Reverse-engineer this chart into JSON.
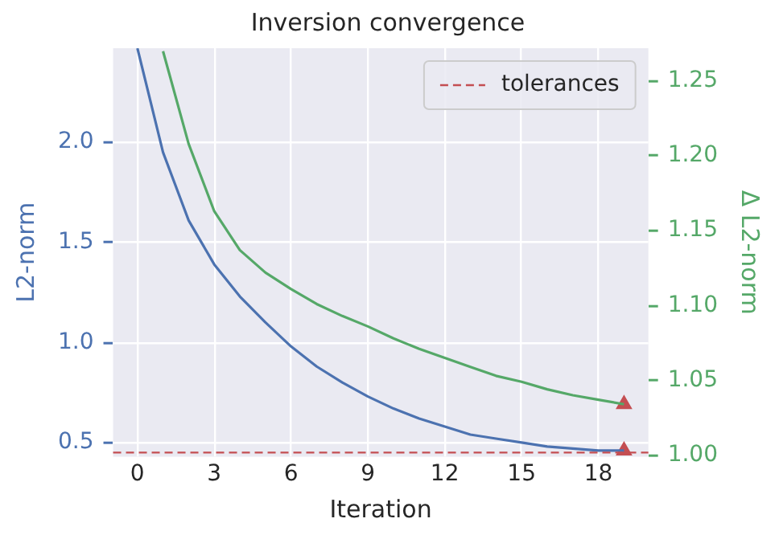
{
  "chart_data": {
    "type": "line",
    "title": "Inversion convergence",
    "xlabel": "Iteration",
    "ylabel": "L2-norm",
    "y2label": "Δ L2-norm",
    "x": [
      0,
      1,
      2,
      3,
      4,
      5,
      6,
      7,
      8,
      9,
      10,
      11,
      12,
      13,
      14,
      15,
      16,
      17,
      18,
      19
    ],
    "series": [
      {
        "type": "line",
        "color": "#4c72b0",
        "axis": "y",
        "values": [
          2.47,
          1.95,
          1.61,
          1.39,
          1.23,
          1.1,
          0.98,
          0.88,
          0.8,
          0.73,
          0.67,
          0.62,
          0.58,
          0.54,
          0.52,
          0.5,
          0.48,
          0.47,
          0.46,
          0.46
        ]
      },
      {
        "type": "line",
        "color": "#55a868",
        "axis": "y2",
        "values": [
          null,
          1.27,
          1.208,
          1.163,
          1.137,
          1.122,
          1.111,
          1.101,
          1.093,
          1.086,
          1.078,
          1.071,
          1.065,
          1.059,
          1.053,
          1.049,
          1.044,
          1.04,
          1.037,
          1.034
        ]
      },
      {
        "type": "scatter",
        "color": "#c44e52",
        "axis": "y",
        "marker": "triangle",
        "x": [
          19
        ],
        "values": [
          0.46
        ]
      },
      {
        "type": "scatter",
        "color": "#c44e52",
        "axis": "y2",
        "marker": "triangle",
        "x": [
          19
        ],
        "values": [
          1.034
        ]
      }
    ],
    "xlim": [
      -0.95,
      19.95
    ],
    "xticks": [
      0,
      3,
      6,
      9,
      12,
      15,
      18
    ],
    "ylim": [
      0.43,
      2.47
    ],
    "yticks": [
      {
        "value": 0.5,
        "label": "0.5"
      },
      {
        "value": 1,
        "label": "1.0"
      },
      {
        "value": 1.5,
        "label": "1.5"
      },
      {
        "value": 2,
        "label": "2.0"
      }
    ],
    "y2lim": [
      0.999,
      1.272
    ],
    "y2ticks": [
      {
        "value": 1,
        "label": "1.00"
      },
      {
        "value": 1.05,
        "label": "1.05"
      },
      {
        "value": 1.1,
        "label": "1.10"
      },
      {
        "value": 1.15,
        "label": "1.15"
      },
      {
        "value": 1.2,
        "label": "1.20"
      },
      {
        "value": 1.25,
        "label": "1.25"
      }
    ],
    "ref_lines": [
      {
        "axis": "y",
        "value": 0.45,
        "label": "tolerances",
        "color": "#c44e52",
        "line_style": "dashed"
      }
    ],
    "grid": true,
    "legend": "top right"
  }
}
